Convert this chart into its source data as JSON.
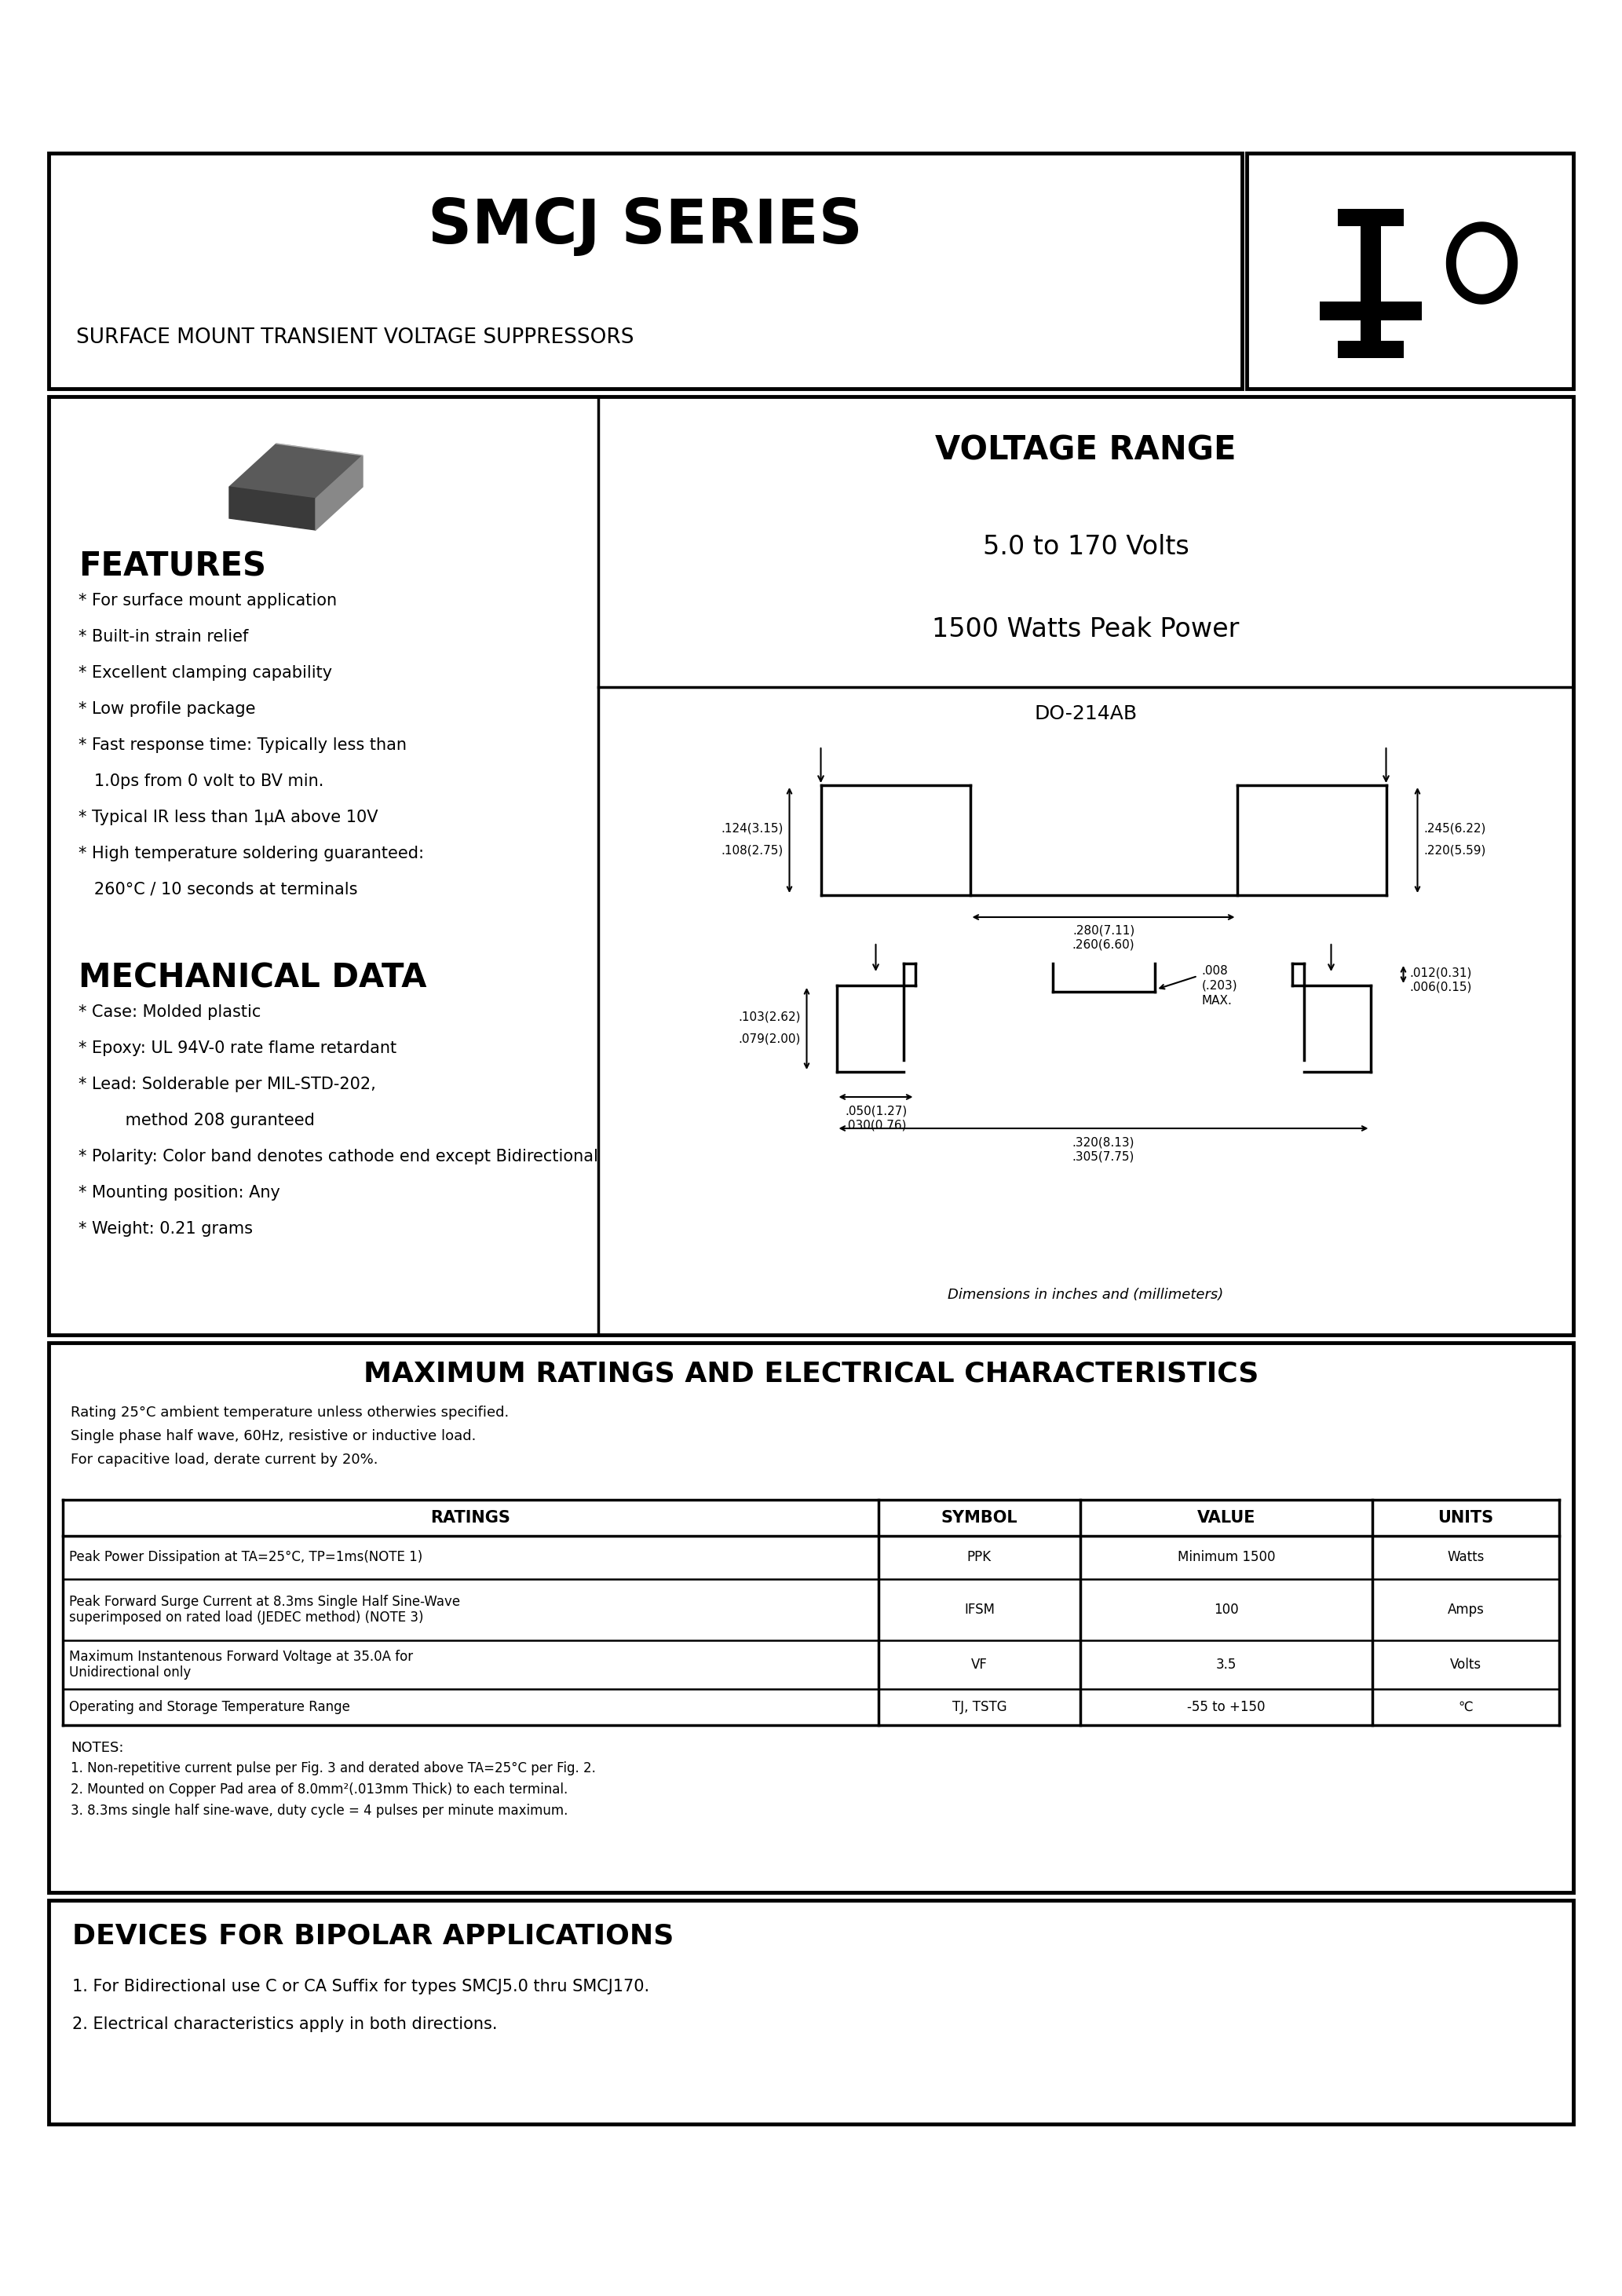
{
  "title": "SMCJ SERIES",
  "subtitle": "SURFACE MOUNT TRANSIENT VOLTAGE SUPPRESSORS",
  "voltage_range_title": "VOLTAGE RANGE",
  "voltage_range": "5.0 to 170 Volts",
  "peak_power": "1500 Watts Peak Power",
  "package": "DO-214AB",
  "features_title": "FEATURES",
  "features": [
    "* For surface mount application",
    "* Built-in strain relief",
    "* Excellent clamping capability",
    "* Low profile package",
    "* Fast response time: Typically less than",
    "   1.0ps from 0 volt to BV min.",
    "* Typical IR less than 1μA above 10V",
    "* High temperature soldering guaranteed:",
    "   260°C / 10 seconds at terminals"
  ],
  "mech_title": "MECHANICAL DATA",
  "mech": [
    "* Case: Molded plastic",
    "* Epoxy: UL 94V-0 rate flame retardant",
    "* Lead: Solderable per MIL-STD-202,",
    "         method 208 guranteed",
    "* Polarity: Color band denotes cathode end except Bidirectional",
    "* Mounting position: Any",
    "* Weight: 0.21 grams"
  ],
  "max_ratings_title": "MAXIMUM RATINGS AND ELECTRICAL CHARACTERISTICS",
  "max_ratings_note": "Rating 25°C ambient temperature unless otherwies specified.\nSingle phase half wave, 60Hz, resistive or inductive load.\nFor capacitive load, derate current by 20%.",
  "table_headers": [
    "RATINGS",
    "SYMBOL",
    "VALUE",
    "UNITS"
  ],
  "table_rows": [
    [
      "Peak Power Dissipation at TA=25°C, TP=1ms(NOTE 1)",
      "PPK",
      "Minimum 1500",
      "Watts"
    ],
    [
      "Peak Forward Surge Current at 8.3ms Single Half Sine-Wave\nsuperimposed on rated load (JEDEC method) (NOTE 3)",
      "IFSM",
      "100",
      "Amps"
    ],
    [
      "Maximum Instantenous Forward Voltage at 35.0A for\nUnidirectional only",
      "VF",
      "3.5",
      "Volts"
    ],
    [
      "Operating and Storage Temperature Range",
      "TJ, TSTG",
      "-55 to +150",
      "℃"
    ]
  ],
  "notes_title": "NOTES:",
  "notes": [
    "1. Non-repetitive current pulse per Fig. 3 and derated above TA=25°C per Fig. 2.",
    "2. Mounted on Copper Pad area of 8.0mm²(.013mm Thick) to each terminal.",
    "3. 8.3ms single half sine-wave, duty cycle = 4 pulses per minute maximum."
  ],
  "bipolar_title": "DEVICES FOR BIPOLAR APPLICATIONS",
  "bipolar": [
    "1. For Bidirectional use C or CA Suffix for types SMCJ5.0 thru SMCJ170.",
    "2. Electrical characteristics apply in both directions."
  ],
  "dim_note": "Dimensions in inches and (millimeters)",
  "bg_color": "#ffffff",
  "text_color": "#000000"
}
